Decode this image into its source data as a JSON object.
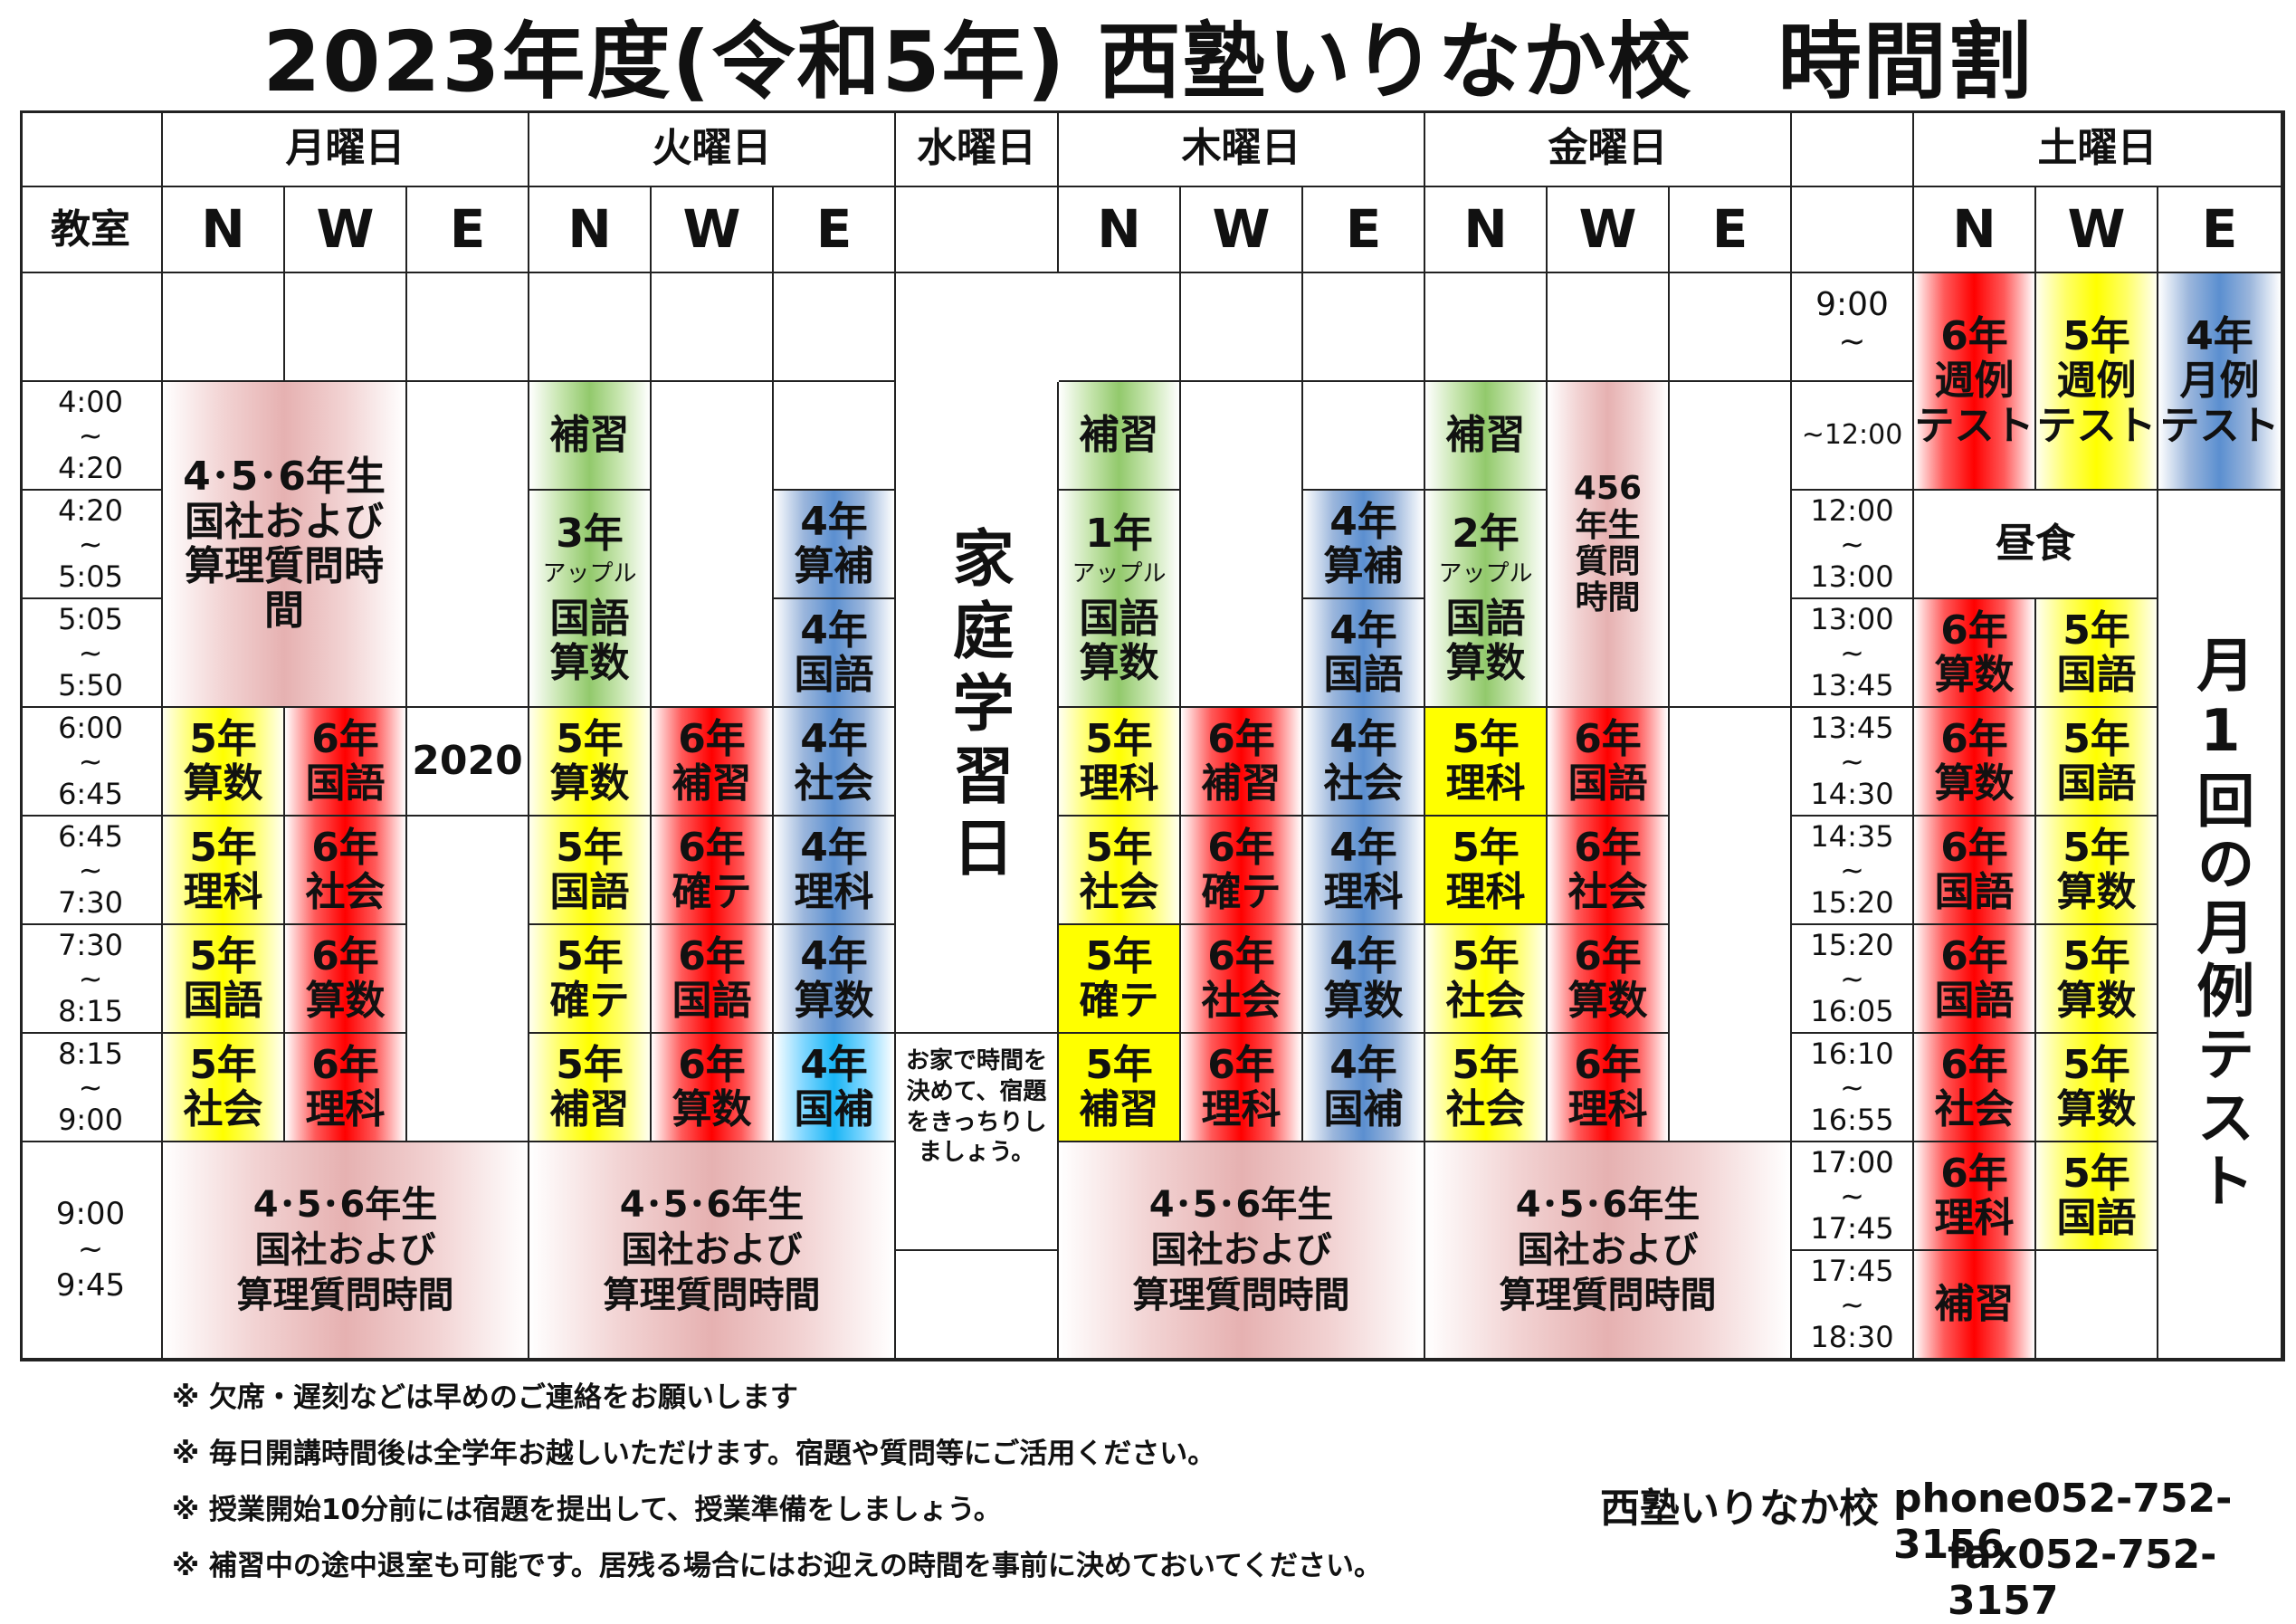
{
  "title": "2023年度(令和5年) 西塾いりなか校　時間割",
  "header": {
    "classroom": "教室",
    "days": {
      "mon": "月曜日",
      "tue": "火曜日",
      "wed": "水曜日",
      "thu": "木曜日",
      "fri": "金曜日",
      "sat": "土曜日"
    },
    "rooms": {
      "n": "N",
      "w": "W",
      "e": "E"
    }
  },
  "weekday_times": [
    "",
    "4:00\n~\n4:20",
    "4:20\n~\n5:05",
    "5:05\n~\n5:50",
    "6:00\n~\n6:45",
    "6:45\n~\n7:30",
    "7:30\n~\n8:15",
    "8:15\n~\n9:00",
    "9:00\n~\n9:45"
  ],
  "saturday_times": [
    "9:00\n~",
    "~12:00",
    "12:00\n~\n13:00",
    "13:00\n~\n13:45",
    "13:45\n~\n14:30",
    "14:35\n~\n15:20",
    "15:20\n~\n16:05",
    "16:10\n~\n16:55",
    "17:00\n~\n17:45",
    "17:45\n~\n18:30"
  ],
  "monday": {
    "question_top": "4･5･6年生\n国社および\n算理質問時\n間",
    "n": [
      "5年\n算数",
      "5年\n理科",
      "5年\n国語",
      "5年\n社会"
    ],
    "w": [
      "6年\n国語",
      "6年\n社会",
      "6年\n算数",
      "6年\n理科"
    ],
    "e_note": "2020",
    "question_bottom": "4･5･6年生\n国社および\n算理質問時間"
  },
  "tuesday": {
    "hoshu": "補習",
    "apple_grade": "3年",
    "apple_label": "アップル",
    "apple_subjects": "国語\n算数",
    "e_top": [
      "4年\n算補",
      "4年\n国語"
    ],
    "n": [
      "5年\n算数",
      "5年\n国語",
      "5年\n確テ",
      "5年\n補習"
    ],
    "w": [
      "6年\n補習",
      "6年\n確テ",
      "6年\n国語",
      "6年\n算数"
    ],
    "e": [
      "4年\n社会",
      "4年\n理科",
      "4年\n算数",
      "4年\n国補"
    ],
    "question_bottom": "4･5･6年生\n国社および\n算理質問時間"
  },
  "wednesday": {
    "label": "家庭学習日",
    "note": "お家で時間を\n決めて、宿題\nをきっちりし\nましょう。"
  },
  "thursday": {
    "hoshu": "補習",
    "apple_grade": "1年",
    "apple_label": "アップル",
    "apple_subjects": "国語\n算数",
    "e_top": [
      "4年\n算補",
      "4年\n国語"
    ],
    "n": [
      "5年\n理科",
      "5年\n社会",
      "5年\n確テ",
      "5年\n補習"
    ],
    "w": [
      "6年\n補習",
      "6年\n確テ",
      "6年\n社会",
      "6年\n理科"
    ],
    "e": [
      "4年\n社会",
      "4年\n理科",
      "4年\n算数",
      "4年\n国補"
    ],
    "question_bottom": "4･5･6年生\n国社および\n算理質問時間"
  },
  "friday": {
    "hoshu": "補習",
    "apple_grade": "2年",
    "apple_label": "アップル",
    "apple_subjects": "国語\n算数",
    "w_top": "456\n年生\n質問\n時間",
    "n": [
      "5年\n理科",
      "5年\n理科",
      "5年\n社会",
      "5年\n社会"
    ],
    "w": [
      "6年\n国語",
      "6年\n社会",
      "6年\n算数",
      "6年\n理科"
    ],
    "question_bottom": "4･5･6年生\n国社および\n算理質問時間"
  },
  "saturday": {
    "tests": [
      "6年\n週例\nテスト",
      "5年\n週例\nテスト",
      "4年\n月例\nテスト"
    ],
    "lunch": "昼食",
    "n": [
      "6年\n算数",
      "6年\n算数",
      "6年\n国語",
      "6年\n国語",
      "6年\n社会",
      "6年\n理科",
      "補習"
    ],
    "w": [
      "5年\n国語",
      "5年\n国語",
      "5年\n算数",
      "5年\n算数",
      "5年\n算数",
      "5年\n国語"
    ],
    "e_note": "月1回の月例テスト"
  },
  "footnotes": [
    "※ 欠席・遅刻などは早めのご連絡をお願いします",
    "※ 毎日開講時間後は全学年お越しいただけます。宿題や質問等にご活用ください。",
    "※ 授業開始10分前には宿題を提出して、授業準備をしましょう。",
    "※ 補習中の途中退室も可能です。居残る場合にはお迎えの時間を事前に決めておいてください。"
  ],
  "contact": {
    "school": "西塾いりなか校",
    "phone": "phone052-752-3156",
    "fax": "fax052-752-3157"
  },
  "colors": {
    "grade6": "#ff0000",
    "grade5": "#ffff00",
    "grade4": "#5b8fd0",
    "hoshu": "#92c96c",
    "question": "#e6b1b1"
  }
}
